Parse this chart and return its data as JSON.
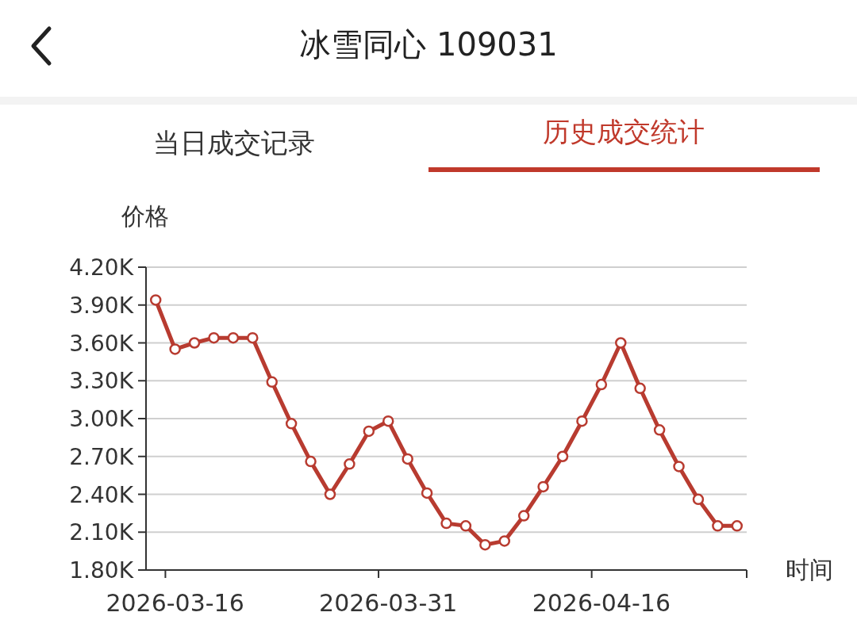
{
  "chart_data": {
    "type": "line",
    "title": "冰雪同心 109031",
    "annotations": [
      "当日成交记录",
      "历史成交统计"
    ],
    "ylabel": "价格",
    "xlabel": "时间",
    "categories": [
      null,
      "2026-03-16",
      null,
      null,
      null,
      null,
      null,
      null,
      null,
      null,
      null,
      null,
      "2026-03-31",
      null,
      null,
      null,
      null,
      null,
      null,
      null,
      null,
      null,
      null,
      "2026-04-16",
      null,
      null,
      null,
      null,
      null,
      null,
      null
    ],
    "series": [
      {
        "color": "#b83b30",
        "values": [
          3940,
          3550,
          3600,
          3640,
          3640,
          3640,
          3290,
          2960,
          2660,
          2400,
          2640,
          2900,
          2980,
          2680,
          2410,
          2170,
          2150,
          2000,
          2030,
          2230,
          2460,
          2700,
          2980,
          3270,
          3600,
          3240,
          2910,
          2620,
          2360,
          2150,
          2150
        ]
      }
    ],
    "ylim": [
      1800,
      4200
    ],
    "yticks": [
      {
        "value": 1800,
        "label": "1.80K"
      },
      {
        "value": 2100,
        "label": "2.10K"
      },
      {
        "value": 2400,
        "label": "2.40K"
      },
      {
        "value": 2700,
        "label": "2.70K"
      },
      {
        "value": 3000,
        "label": "3.00K"
      },
      {
        "value": 3300,
        "label": "3.30K"
      },
      {
        "value": 3600,
        "label": "3.60K"
      },
      {
        "value": 3900,
        "label": "3.90K"
      },
      {
        "value": 4200,
        "label": "4.20K"
      }
    ],
    "grid": "y",
    "marker": "circle",
    "line_style": "solid"
  }
}
